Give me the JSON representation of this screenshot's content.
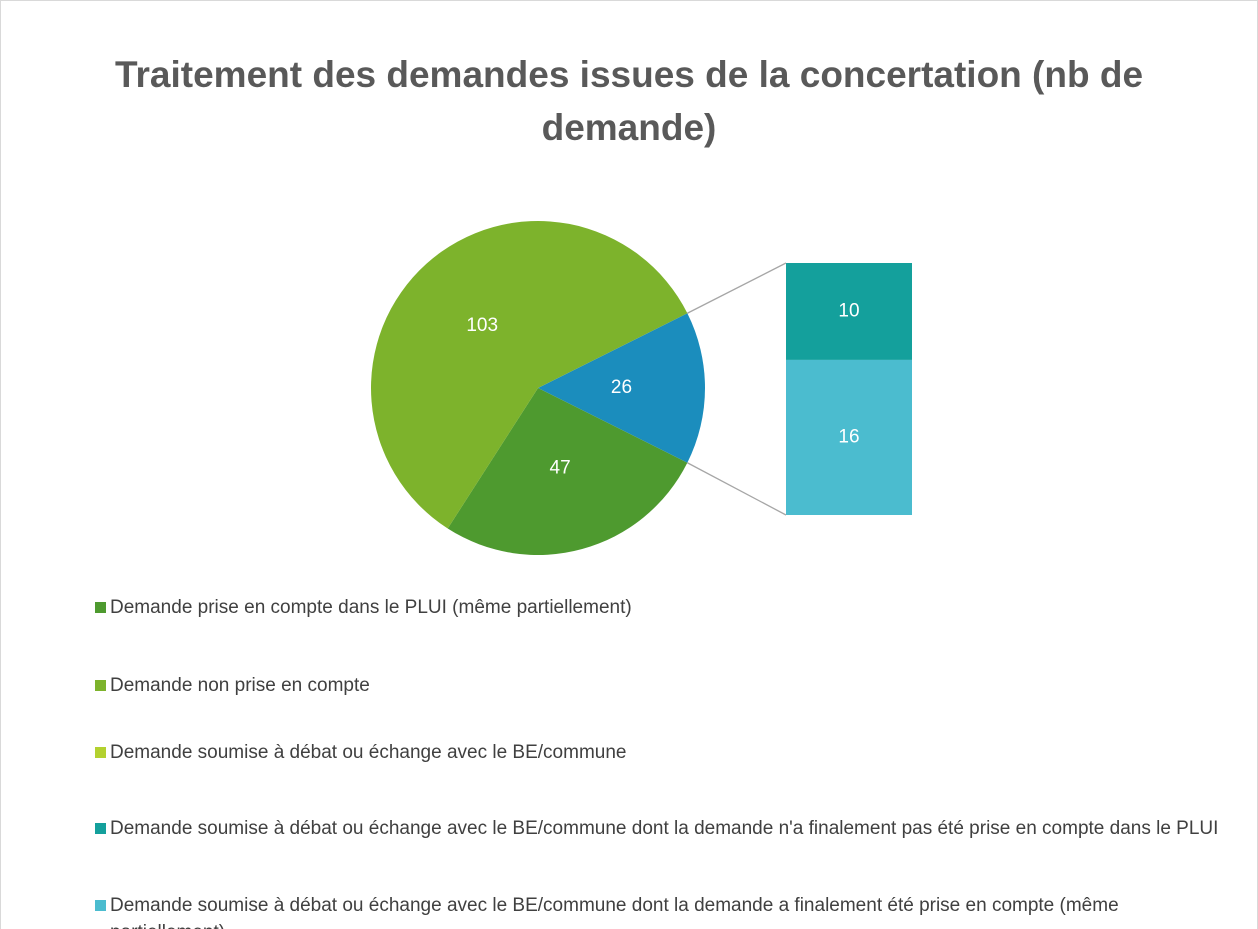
{
  "chart_data": {
    "type": "pie-of-bar",
    "title": "Traitement des demandes issues de la concertation (nb de demande)",
    "categories": [
      "Demande prise en compte dans le PLUI (même partiellement)",
      "Demande non prise en compte",
      "Demande soumise à débat ou échange avec le BE/commune",
      "Demande soumise à débat ou échange avec le BE/commune dont la demande n'a finalement pas été prise en compte dans le PLUI",
      "Demande soumise à débat ou échange avec le BE/commune dont la demande a finalement été  prise en compte (même partiellement)"
    ],
    "values": [
      47,
      103,
      null,
      10,
      16
    ],
    "colors": [
      "#4e9a2f",
      "#7db32c",
      "#b3d12f",
      "#14a09c",
      "#4bbccf"
    ],
    "other_value": 26,
    "other_color": "#1b8dbd"
  }
}
